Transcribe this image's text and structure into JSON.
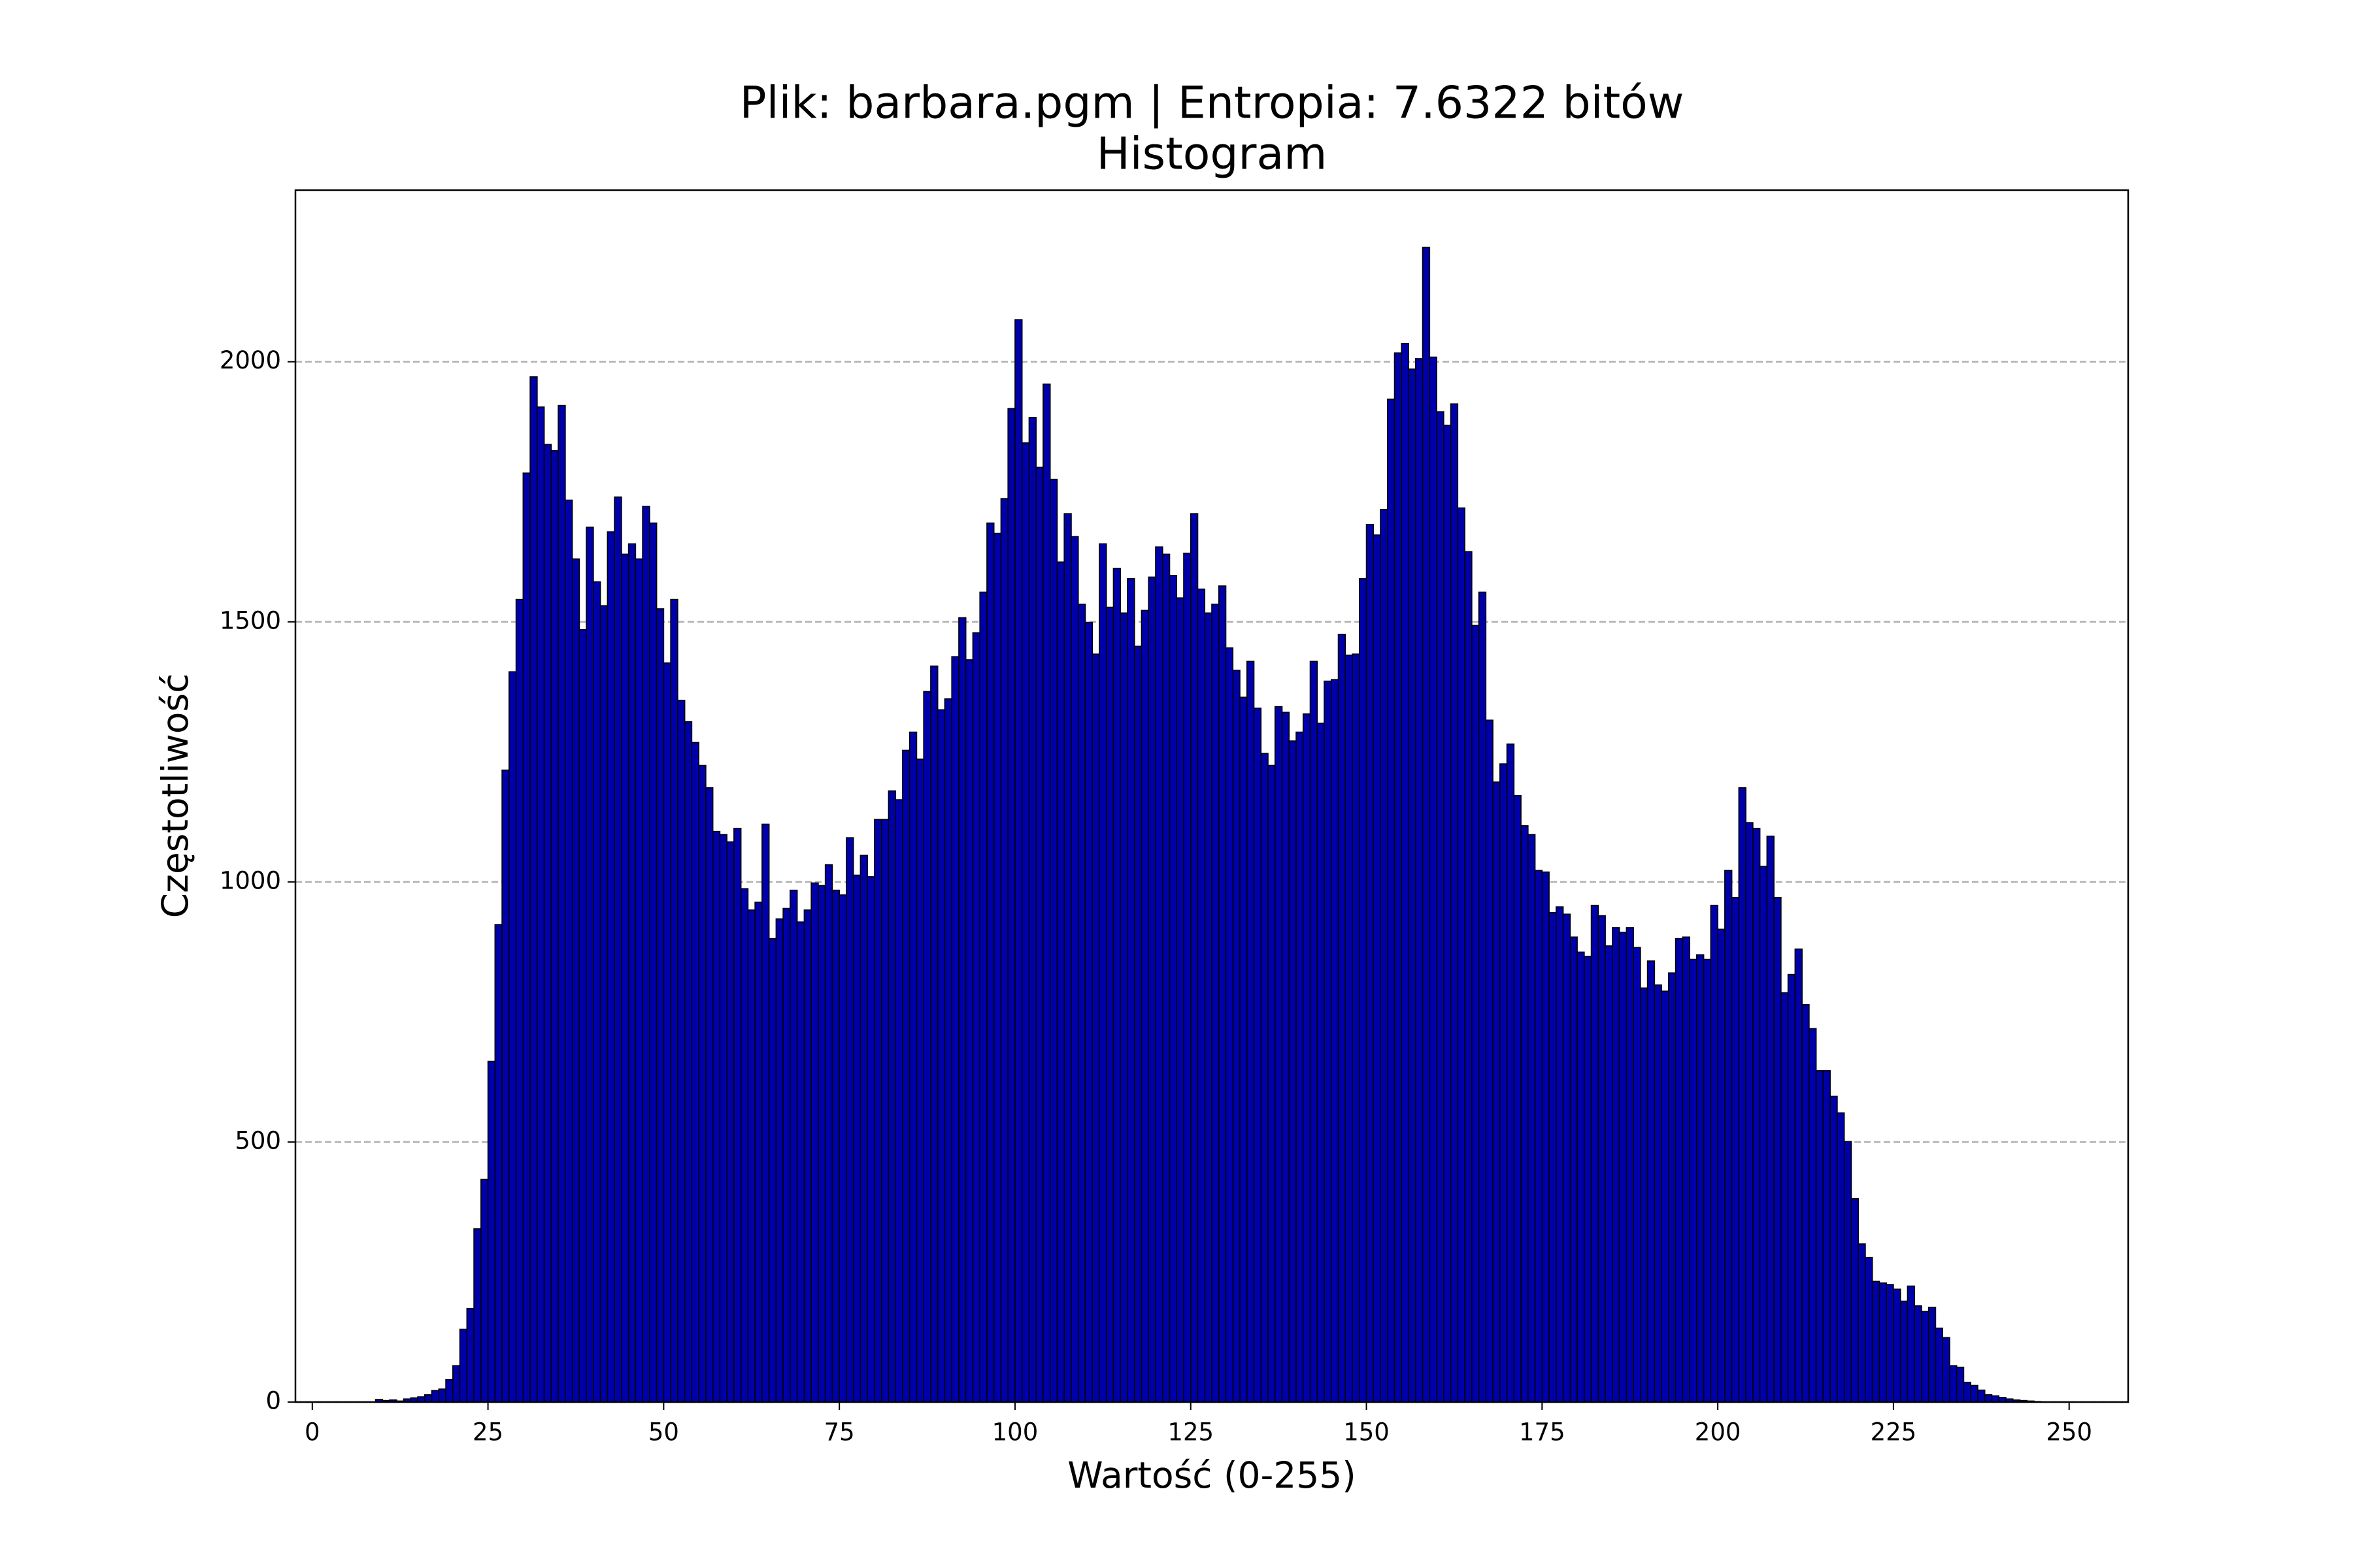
{
  "chart_data": {
    "type": "histogram",
    "title": "Plik: barbara.pgm | Entropia: 7.6322 bitów",
    "subtitle": "Histogram",
    "x_label": "Wartość (0-255)",
    "y_label": "Częstotliwość",
    "bins": [
      0,
      1,
      2,
      3,
      4,
      5,
      6,
      7,
      8,
      9,
      10,
      11,
      12,
      13,
      14,
      15,
      16,
      17,
      18,
      19,
      20,
      21,
      22,
      23,
      24,
      25,
      26,
      27,
      28,
      29,
      30,
      31,
      32,
      33,
      34,
      35,
      36,
      37,
      38,
      39,
      40,
      41,
      42,
      43,
      44,
      45,
      46,
      47,
      48,
      49,
      50,
      51,
      52,
      53,
      54,
      55,
      56,
      57,
      58,
      59,
      60,
      61,
      62,
      63,
      64,
      65,
      66,
      67,
      68,
      69,
      70,
      71,
      72,
      73,
      74,
      75,
      76,
      77,
      78,
      79,
      80,
      81,
      82,
      83,
      84,
      85,
      86,
      87,
      88,
      89,
      90,
      91,
      92,
      93,
      94,
      95,
      96,
      97,
      98,
      99,
      100,
      101,
      102,
      103,
      104,
      105,
      106,
      107,
      108,
      109,
      110,
      111,
      112,
      113,
      114,
      115,
      116,
      117,
      118,
      119,
      120,
      121,
      122,
      123,
      124,
      125,
      126,
      127,
      128,
      129,
      130,
      131,
      132,
      133,
      134,
      135,
      136,
      137,
      138,
      139,
      140,
      141,
      142,
      143,
      144,
      145,
      146,
      147,
      148,
      149,
      150,
      151,
      152,
      153,
      154,
      155,
      156,
      157,
      158,
      159,
      160,
      161,
      162,
      163,
      164,
      165,
      166,
      167,
      168,
      169,
      170,
      171,
      172,
      173,
      174,
      175,
      176,
      177,
      178,
      179,
      180,
      181,
      182,
      183,
      184,
      185,
      186,
      187,
      188,
      189,
      190,
      191,
      192,
      193,
      194,
      195,
      196,
      197,
      198,
      199,
      200,
      201,
      202,
      203,
      204,
      205,
      206,
      207,
      208,
      209,
      210,
      211,
      212,
      213,
      214,
      215,
      216,
      217,
      218,
      219,
      220,
      221,
      222,
      223,
      224,
      225,
      226,
      227,
      228,
      229,
      230,
      231,
      232,
      233,
      234,
      235,
      236,
      237,
      238,
      239,
      240,
      241,
      242,
      243,
      244,
      245,
      246,
      247,
      248,
      249,
      250,
      251,
      252,
      253,
      254,
      255,
      256
    ],
    "counts": [
      0,
      0,
      0,
      0,
      0,
      0,
      0,
      0,
      0,
      5,
      3,
      4,
      2,
      6,
      8,
      10,
      14,
      22,
      25,
      43,
      70,
      140,
      180,
      333,
      428,
      655,
      918,
      1215,
      1404,
      1543,
      1786,
      1971,
      1913,
      1841,
      1829,
      1916,
      1734,
      1621,
      1485,
      1682,
      1577,
      1531,
      1673,
      1740,
      1630,
      1650,
      1621,
      1722,
      1690,
      1525,
      1421,
      1543,
      1349,
      1308,
      1268,
      1224,
      1181,
      1097,
      1091,
      1077,
      1103,
      987,
      946,
      961,
      1111,
      891,
      929,
      949,
      984,
      923,
      946,
      998,
      993,
      1033,
      984,
      975,
      1085,
      1013,
      1051,
      1010,
      1120,
      1120,
      1175,
      1158,
      1253,
      1288,
      1236,
      1366,
      1415,
      1331,
      1352,
      1433,
      1508,
      1427,
      1479,
      1557,
      1690,
      1670,
      1737,
      1910,
      2081,
      1844,
      1893,
      1797,
      1957,
      1774,
      1615,
      1708,
      1664,
      1534,
      1499,
      1438,
      1650,
      1528,
      1603,
      1517,
      1583,
      1453,
      1522,
      1586,
      1644,
      1630,
      1589,
      1546,
      1632,
      1708,
      1563,
      1517,
      1534,
      1569,
      1450,
      1407,
      1355,
      1424,
      1334,
      1247,
      1224,
      1337,
      1326,
      1271,
      1288,
      1323,
      1424,
      1305,
      1386,
      1389,
      1476,
      1436,
      1438,
      1583,
      1687,
      1667,
      1716,
      1928,
      2017,
      2035,
      1986,
      2006,
      2220,
      2009,
      1904,
      1878,
      1919,
      1719,
      1635,
      1493,
      1557,
      1311,
      1192,
      1227,
      1265,
      1166,
      1108,
      1091,
      1022,
      1019,
      941,
      952,
      938,
      894,
      865,
      857,
      955,
      935,
      877,
      912,
      903,
      912,
      874,
      796,
      848,
      802,
      790,
      825,
      891,
      894,
      851,
      860,
      851,
      955,
      909,
      1022,
      970,
      1181,
      1114,
      1103,
      1030,
      1088,
      970,
      787,
      822,
      871,
      764,
      718,
      637,
      637,
      588,
      556,
      501,
      391,
      304,
      278,
      232,
      229,
      226,
      217,
      194,
      223,
      185,
      174,
      182,
      142,
      124,
      70,
      67,
      38,
      32,
      23,
      14,
      12,
      9,
      6,
      4,
      3,
      2,
      1,
      0,
      0,
      0,
      0,
      0,
      0,
      0,
      0,
      0,
      0
    ],
    "color": "#0000aa",
    "edgecolor": "#000000",
    "xlim": [
      -2.4,
      258.4
    ],
    "ylim": [
      0,
      2330
    ],
    "xticks": [
      0,
      25,
      50,
      75,
      100,
      125,
      150,
      175,
      200,
      225,
      250
    ],
    "yticks": [
      0,
      500,
      1000,
      1500,
      2000
    ],
    "grid": "y"
  }
}
